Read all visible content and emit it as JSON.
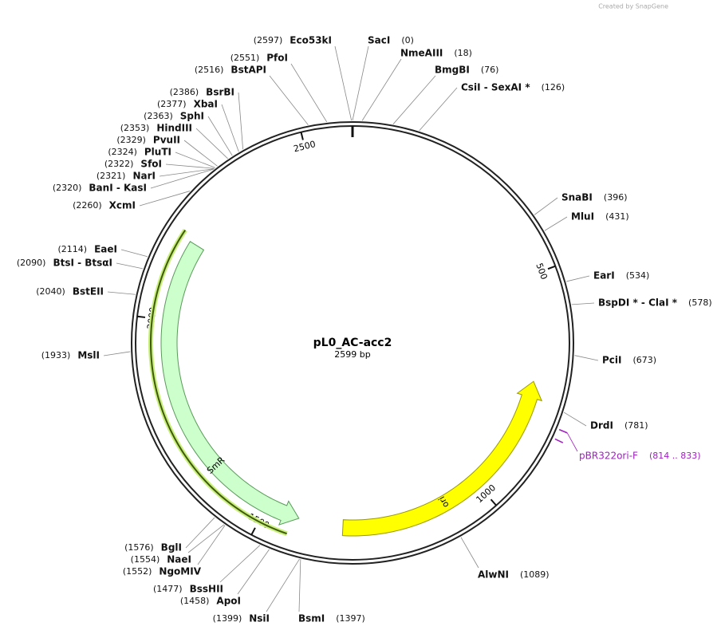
{
  "watermark": "Created by SnapGene",
  "title": "pL0_AC-acc2",
  "length": "2599 bp",
  "sites": [
    {
      "name": "Eco53kI",
      "position": "(2597)"
    },
    {
      "name": "SacI",
      "position": "(0)"
    },
    {
      "name": "NmeAIII",
      "position": "(18)"
    },
    {
      "name": "BmgBI",
      "position": "(76)"
    },
    {
      "name": "CsiI  - SexAI *",
      "position": "(126)"
    },
    {
      "name": "SnaBI",
      "position": "(396)"
    },
    {
      "name": "MluI",
      "position": "(431)"
    },
    {
      "name": "EarI",
      "position": "(534)"
    },
    {
      "name": "BspDI * - ClaI *",
      "position": "(578)"
    },
    {
      "name": "PciI",
      "position": "(673)"
    },
    {
      "name": "DrdI",
      "position": "(781)"
    },
    {
      "name": "AlwNI",
      "position": "(1089)"
    },
    {
      "name": "BsmI",
      "position": "(1397)"
    },
    {
      "name": "NsiI",
      "position": "(1399)"
    },
    {
      "name": "ApoI",
      "position": "(1458)"
    },
    {
      "name": "BssHII",
      "position": "(1477)"
    },
    {
      "name": "NgoMIV",
      "position": "(1552)"
    },
    {
      "name": "NaeI",
      "position": "(1554)"
    },
    {
      "name": "BglI",
      "position": "(1576)"
    },
    {
      "name": "MslI",
      "position": "(1933)"
    },
    {
      "name": "BstEII",
      "position": "(2040)"
    },
    {
      "name": "BtsI  - BtsαI",
      "position": "(2090)"
    },
    {
      "name": "EaeI",
      "position": "(2114)"
    },
    {
      "name": "XcmI",
      "position": "(2260)"
    },
    {
      "name": "BanI  - KasI",
      "position": "(2320)"
    },
    {
      "name": "NarI",
      "position": "(2321)"
    },
    {
      "name": "SfoI",
      "position": "(2322)"
    },
    {
      "name": "PluTI",
      "position": "(2324)"
    },
    {
      "name": "PvuII",
      "position": "(2329)"
    },
    {
      "name": "HindIII",
      "position": "(2353)"
    },
    {
      "name": "SphI",
      "position": "(2363)"
    },
    {
      "name": "XbaI",
      "position": "(2377)"
    },
    {
      "name": "BsrBI",
      "position": "(2386)"
    },
    {
      "name": "BstAPI",
      "position": "(2516)"
    },
    {
      "name": "PfoI",
      "position": "(2551)"
    }
  ],
  "features": [
    {
      "label": "SmR"
    },
    {
      "label": "ori"
    }
  ],
  "primers": [
    {
      "name": "pBR322ori-F",
      "range": "(814 .. 833)"
    }
  ],
  "ticks": [
    500,
    1000,
    1500,
    2000,
    2500
  ]
}
